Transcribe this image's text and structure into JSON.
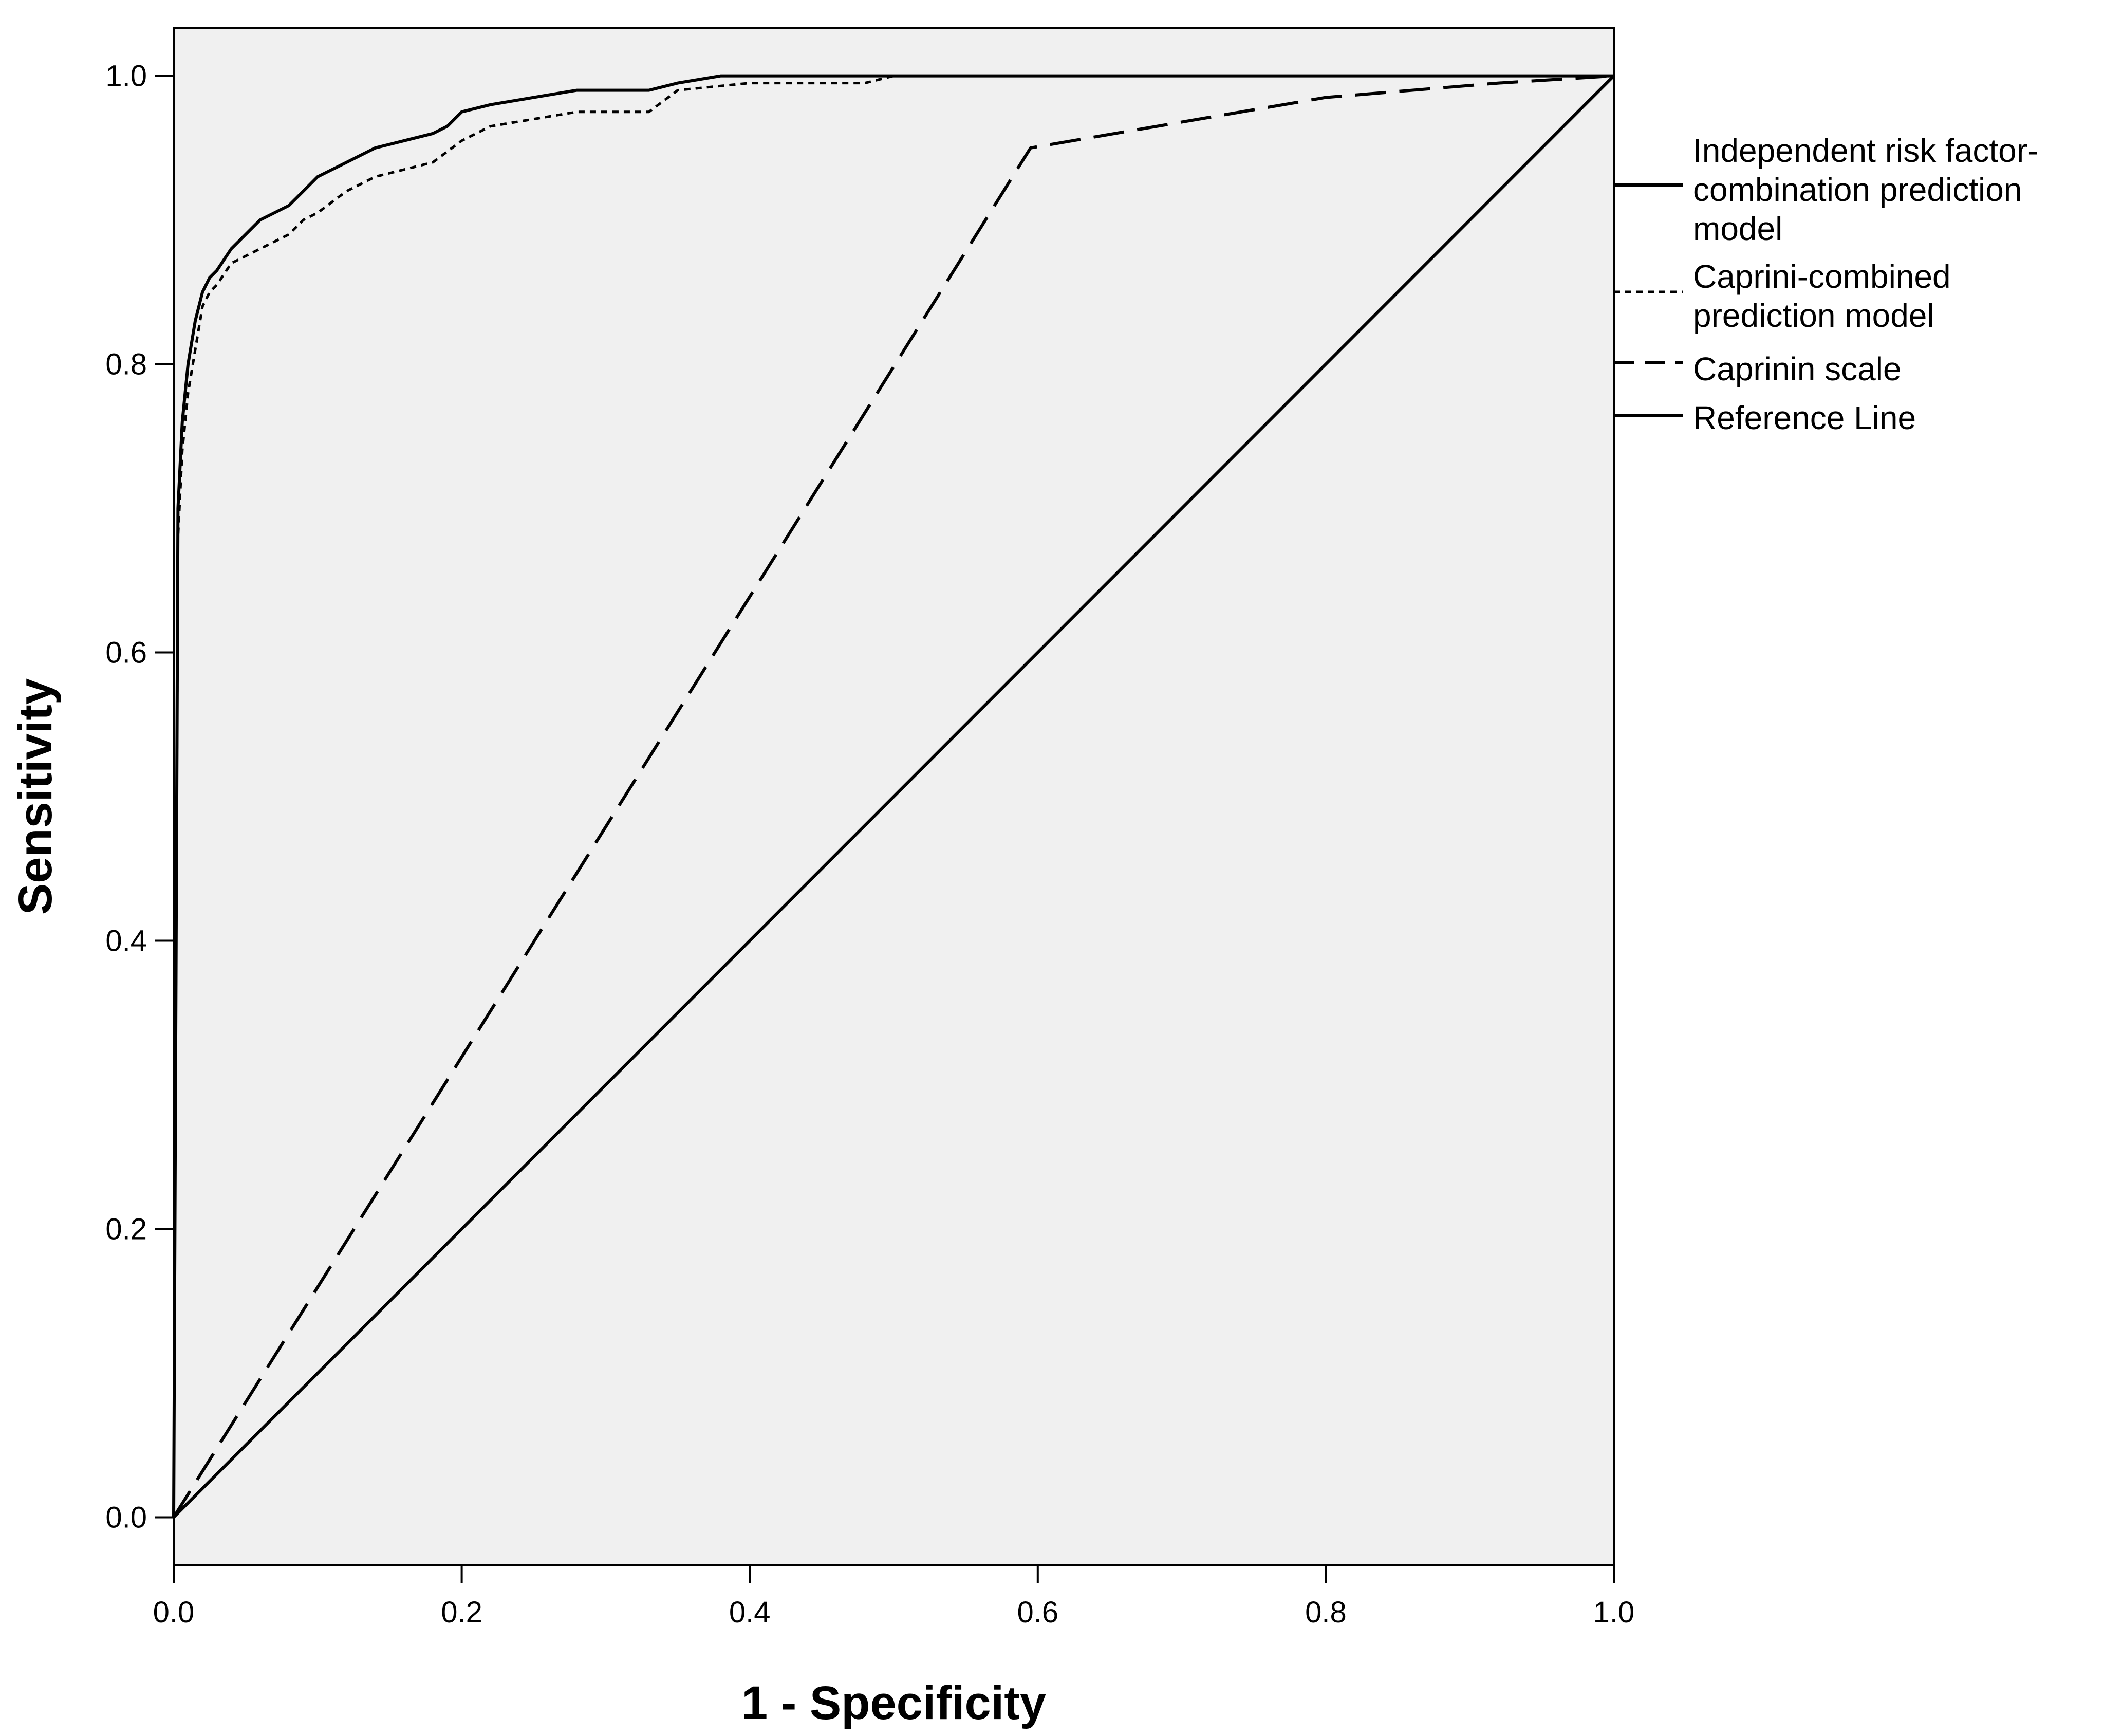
{
  "chart_data": {
    "type": "line",
    "title": "",
    "xlabel": "1 - Specificity",
    "ylabel": "Sensitivity",
    "xlim": [
      0,
      1
    ],
    "ylim": [
      -0.033,
      1.033
    ],
    "xticks": [
      "0.0",
      "0.2",
      "0.4",
      "0.6",
      "0.8",
      "1.0"
    ],
    "yticks": [
      "0.0",
      "0.2",
      "0.4",
      "0.6",
      "0.8",
      "1.0"
    ],
    "grid": false,
    "legend_position": "right",
    "plot_background": "#f0f0f0",
    "line_color": "#000000",
    "series": [
      {
        "name": "Independent risk factor-combination prediction model",
        "style": "solid",
        "x": [
          0,
          0.003,
          0.006,
          0.01,
          0.015,
          0.02,
          0.025,
          0.03,
          0.04,
          0.05,
          0.06,
          0.07,
          0.08,
          0.09,
          0.1,
          0.12,
          0.14,
          0.16,
          0.18,
          0.19,
          0.2,
          0.22,
          0.25,
          0.28,
          0.3,
          0.33,
          0.35,
          0.38,
          0.4,
          0.5,
          0.7,
          1.0
        ],
        "y": [
          0,
          0.7,
          0.76,
          0.8,
          0.83,
          0.85,
          0.86,
          0.865,
          0.88,
          0.89,
          0.9,
          0.905,
          0.91,
          0.92,
          0.93,
          0.94,
          0.95,
          0.955,
          0.96,
          0.965,
          0.975,
          0.98,
          0.985,
          0.99,
          0.99,
          0.99,
          0.995,
          1.0,
          1.0,
          1.0,
          1.0,
          1.0
        ]
      },
      {
        "name": "Caprini-combined prediction model",
        "style": "dotted",
        "x": [
          0,
          0.003,
          0.006,
          0.01,
          0.015,
          0.02,
          0.025,
          0.03,
          0.04,
          0.05,
          0.06,
          0.07,
          0.08,
          0.09,
          0.1,
          0.12,
          0.14,
          0.16,
          0.18,
          0.2,
          0.22,
          0.25,
          0.28,
          0.3,
          0.33,
          0.35,
          0.4,
          0.45,
          0.48,
          0.5,
          0.7,
          1.0
        ],
        "y": [
          0,
          0.68,
          0.74,
          0.78,
          0.81,
          0.84,
          0.85,
          0.855,
          0.87,
          0.875,
          0.88,
          0.885,
          0.89,
          0.9,
          0.905,
          0.92,
          0.93,
          0.935,
          0.94,
          0.955,
          0.965,
          0.97,
          0.975,
          0.975,
          0.975,
          0.99,
          0.995,
          0.995,
          0.995,
          1.0,
          1.0,
          1.0
        ]
      },
      {
        "name": "Caprinin scale",
        "style": "dashed",
        "x": [
          0,
          0.595,
          0.8,
          0.92,
          1.0
        ],
        "y": [
          0,
          0.95,
          0.985,
          0.995,
          1.0
        ]
      },
      {
        "name": "Reference Line",
        "style": "solid",
        "x": [
          0,
          1
        ],
        "y": [
          0,
          1
        ]
      }
    ],
    "legend_labels": [
      [
        "Independent risk factor-",
        "combination prediction",
        "model"
      ],
      [
        "Caprini-combined",
        "prediction model"
      ],
      [
        "Caprinin scale"
      ],
      [
        "Reference Line"
      ]
    ]
  }
}
